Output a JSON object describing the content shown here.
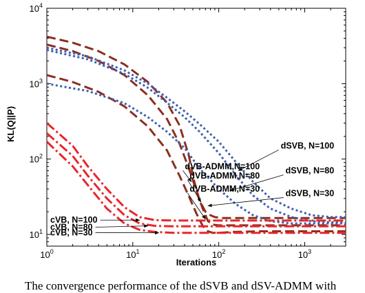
{
  "chart_data": {
    "type": "line",
    "xlabel": "Iterations",
    "ylabel": "KL(Q||P)",
    "xscale": "log",
    "yscale": "log",
    "xlim": [
      1,
      3000
    ],
    "ylim": [
      7,
      10000
    ],
    "x_ticks": [
      {
        "value": 1,
        "label": "10",
        "exp": "0"
      },
      {
        "value": 10,
        "label": "10",
        "exp": "1"
      },
      {
        "value": 100,
        "label": "10",
        "exp": "2"
      },
      {
        "value": 1000,
        "label": "10",
        "exp": "3"
      }
    ],
    "y_ticks": [
      {
        "value": 10,
        "label": "10",
        "exp": "1"
      },
      {
        "value": 100,
        "label": "10",
        "exp": "2"
      },
      {
        "value": 1000,
        "label": "10",
        "exp": "3"
      },
      {
        "value": 10000,
        "label": "10",
        "exp": "4"
      }
    ],
    "grid": false,
    "legend": "annotations with arrows",
    "series": [
      {
        "name": "dVB-ADMM,N=100",
        "color": "#8b2e1f",
        "dash": "13,6",
        "label_anchor": [
          300,
          80
        ],
        "label_target": [
          48,
          50
        ],
        "points": [
          [
            1,
            4200
          ],
          [
            2,
            3500
          ],
          [
            4,
            2700
          ],
          [
            8,
            1800
          ],
          [
            15,
            1050
          ],
          [
            25,
            560
          ],
          [
            35,
            280
          ],
          [
            45,
            110
          ],
          [
            52,
            50
          ],
          [
            60,
            28
          ],
          [
            70,
            20
          ],
          [
            80,
            18
          ],
          [
            90,
            17
          ],
          [
            110,
            16.5
          ],
          [
            150,
            16.5
          ],
          [
            300,
            16.5
          ],
          [
            1000,
            16.5
          ],
          [
            3000,
            16.5
          ]
        ]
      },
      {
        "name": "dVB-ADMM,N=80",
        "color": "#8b2e1f",
        "dash": "13,6",
        "label_anchor": [
          300,
          60
        ],
        "label_target": [
          62,
          27
        ],
        "points": [
          [
            1,
            3300
          ],
          [
            2,
            2700
          ],
          [
            4,
            2000
          ],
          [
            8,
            1300
          ],
          [
            15,
            700
          ],
          [
            25,
            340
          ],
          [
            35,
            160
          ],
          [
            45,
            75
          ],
          [
            55,
            38
          ],
          [
            65,
            22
          ],
          [
            75,
            15
          ],
          [
            85,
            13.5
          ],
          [
            100,
            13.2
          ],
          [
            150,
            13.2
          ],
          [
            300,
            13.2
          ],
          [
            1000,
            13.2
          ],
          [
            3000,
            13.2
          ]
        ]
      },
      {
        "name": "dVB-ADMM,N=30",
        "color": "#8b2e1f",
        "dash": "13,6",
        "label_anchor": [
          300,
          40
        ],
        "label_target": [
          70,
          16
        ],
        "points": [
          [
            1,
            1300
          ],
          [
            2,
            1050
          ],
          [
            4,
            780
          ],
          [
            8,
            500
          ],
          [
            15,
            270
          ],
          [
            25,
            130
          ],
          [
            35,
            60
          ],
          [
            45,
            32
          ],
          [
            55,
            19
          ],
          [
            65,
            13
          ],
          [
            75,
            11
          ],
          [
            85,
            10.5
          ],
          [
            100,
            10.5
          ],
          [
            150,
            10.8
          ],
          [
            300,
            11
          ],
          [
            1000,
            11
          ],
          [
            3000,
            11
          ]
        ]
      },
      {
        "name": "dSVB, N=100",
        "color": "#3d5fae",
        "dash": "3,3.5",
        "label_anchor": [
          2200,
          150
        ],
        "label_target": [
          170,
          70
        ],
        "points": [
          [
            1,
            3000
          ],
          [
            3,
            2300
          ],
          [
            8,
            1500
          ],
          [
            15,
            1000
          ],
          [
            25,
            650
          ],
          [
            40,
            430
          ],
          [
            60,
            290
          ],
          [
            100,
            170
          ],
          [
            160,
            90
          ],
          [
            250,
            50
          ],
          [
            400,
            30
          ],
          [
            700,
            22
          ],
          [
            1200,
            18
          ],
          [
            2000,
            17
          ],
          [
            3000,
            17
          ]
        ]
      },
      {
        "name": "dSVB, N=80",
        "color": "#3d5fae",
        "dash": "3,3.5",
        "label_anchor": [
          2200,
          70
        ],
        "label_target": [
          135,
          38
        ],
        "points": [
          [
            1,
            2800
          ],
          [
            3,
            2100
          ],
          [
            8,
            1350
          ],
          [
            15,
            880
          ],
          [
            25,
            560
          ],
          [
            40,
            360
          ],
          [
            60,
            230
          ],
          [
            100,
            120
          ],
          [
            160,
            60
          ],
          [
            250,
            33
          ],
          [
            400,
            22
          ],
          [
            700,
            17
          ],
          [
            1200,
            15
          ],
          [
            2000,
            14.5
          ],
          [
            3000,
            14.5
          ]
        ]
      },
      {
        "name": "dSVB, N=30",
        "color": "#3d5fae",
        "dash": "3,3.5",
        "label_anchor": [
          2200,
          35
        ],
        "label_target": [
          75,
          24
        ],
        "points": [
          [
            1,
            1000
          ],
          [
            3,
            800
          ],
          [
            8,
            550
          ],
          [
            15,
            360
          ],
          [
            25,
            230
          ],
          [
            40,
            140
          ],
          [
            60,
            75
          ],
          [
            100,
            40
          ],
          [
            160,
            25
          ],
          [
            250,
            18
          ],
          [
            400,
            15
          ],
          [
            700,
            14
          ],
          [
            1200,
            14
          ],
          [
            3000,
            14
          ]
        ]
      },
      {
        "name": "cVB, N=100",
        "color": "#e8262b",
        "dash": "14,4,3,4",
        "label_anchor": [
          2.5,
          15.5
        ],
        "label_target": [
          12,
          15.5
        ],
        "points": [
          [
            1,
            300
          ],
          [
            2,
            150
          ],
          [
            3,
            80
          ],
          [
            5,
            40
          ],
          [
            8,
            23
          ],
          [
            12,
            17
          ],
          [
            18,
            15.5
          ],
          [
            30,
            15.3
          ],
          [
            100,
            15.3
          ],
          [
            300,
            15.3
          ],
          [
            3000,
            15.3
          ]
        ]
      },
      {
        "name": "cVB, N=80",
        "color": "#e8262b",
        "dash": "14,4,3,4",
        "label_anchor": [
          2.5,
          12.5
        ],
        "label_target": [
          15,
          13
        ],
        "points": [
          [
            1,
            220
          ],
          [
            2,
            110
          ],
          [
            3,
            60
          ],
          [
            5,
            30
          ],
          [
            8,
            18
          ],
          [
            12,
            14
          ],
          [
            18,
            13
          ],
          [
            30,
            12.8
          ],
          [
            100,
            12.8
          ],
          [
            300,
            12.8
          ],
          [
            3000,
            12.8
          ]
        ]
      },
      {
        "name": "cVB, N=30",
        "color": "#e8262b",
        "dash": "14,4,3,4",
        "label_anchor": [
          2.5,
          10.6
        ],
        "label_target": [
          20,
          10.5
        ],
        "points": [
          [
            1,
            170
          ],
          [
            2,
            80
          ],
          [
            3,
            45
          ],
          [
            5,
            22
          ],
          [
            8,
            14
          ],
          [
            12,
            11.5
          ],
          [
            18,
            10.8
          ],
          [
            30,
            10.5
          ],
          [
            100,
            10.5
          ],
          [
            300,
            10.5
          ],
          [
            3000,
            10.5
          ]
        ]
      }
    ]
  },
  "caption": "The convergence performance of the dSVB and dSV-ADMM with"
}
